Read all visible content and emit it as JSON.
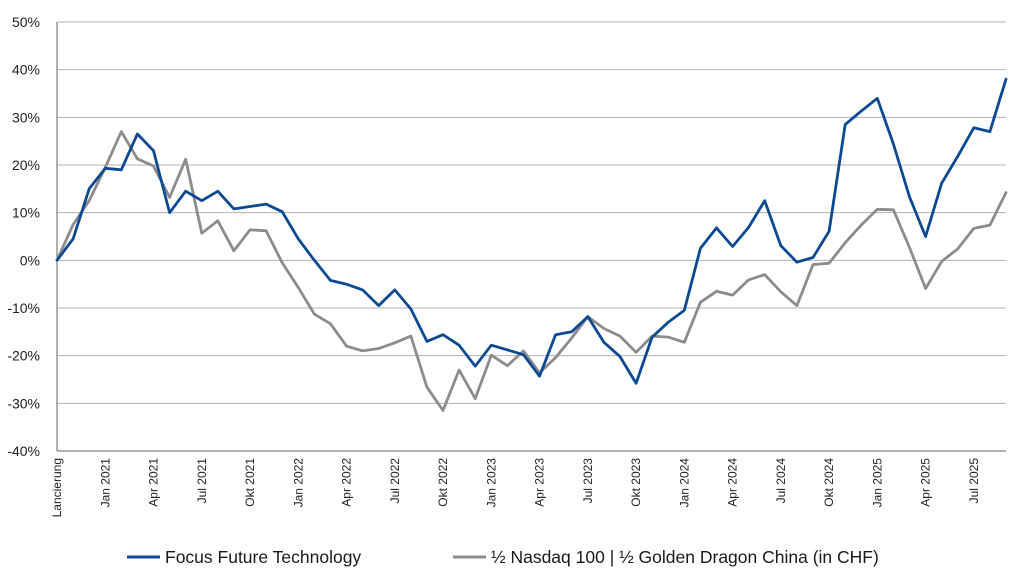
{
  "chart_data": {
    "type": "line",
    "ylim": [
      -40,
      50
    ],
    "y_ticks": [
      "50%",
      "40%",
      "30%",
      "20%",
      "10%",
      "0%",
      "-10%",
      "-20%",
      "-30%",
      "-40%"
    ],
    "y_tick_values": [
      50,
      40,
      30,
      20,
      10,
      0,
      -10,
      -20,
      -30,
      -40
    ],
    "x_labels": [
      "Lancierung",
      "Jan 2021",
      "Apr 2021",
      "Jul 2021",
      "Okt 2021",
      "Jan 2022",
      "Apr 2022",
      "Jul 2022",
      "Okt 2022",
      "Jan 2023",
      "Apr 2023",
      "Jul 2023",
      "Okt 2023",
      "Jan 2024",
      "Apr 2024",
      "Jul 2024",
      "Okt 2024",
      "Jan 2025",
      "Apr 2025",
      "Jul 2025"
    ],
    "grid": "horizontal",
    "legend_position": "bottom",
    "series": [
      {
        "name": "Focus Future Technology",
        "color": "#0b4a93",
        "values": [
          0,
          4.5,
          15,
          19.3,
          19,
          26.5,
          23,
          10,
          14.5,
          12.5,
          14.5,
          10.8,
          11.3,
          11.8,
          10.2,
          4.5,
          0,
          -4.2,
          -5,
          -6.2,
          -9.5,
          -6.2,
          -10.2,
          -17,
          -15.6,
          -17.8,
          -22.2,
          -17.8,
          -18.8,
          -19.8,
          -24.3,
          -15.6,
          -15,
          -11.8,
          -17.2,
          -20.2,
          -25.8,
          -16.1,
          -13,
          -10.5,
          2.5,
          6.8,
          2.9,
          6.9,
          12.5,
          3.1,
          -0.4,
          0.6,
          6.1,
          28.5,
          31.3,
          34,
          24.4,
          13.3,
          5,
          16.2,
          21.8,
          27.8,
          27,
          38
        ]
      },
      {
        "name": "½ Nasdaq 100 | ½ Golden Dragon China (in CHF)",
        "color": "#8c8c8c",
        "values": [
          0,
          7.5,
          12.5,
          19.5,
          27,
          21.3,
          19.8,
          13.2,
          21.2,
          5.7,
          8.3,
          2,
          6.4,
          6.2,
          -0.5,
          -5.7,
          -11.3,
          -13.3,
          -18,
          -19,
          -18.5,
          -17.3,
          -15.9,
          -26.6,
          -31.5,
          -23,
          -29,
          -19.9,
          -22.1,
          -19,
          -23.6,
          -20.4,
          -16.3,
          -11.8,
          -14.3,
          -15.9,
          -19.3,
          -15.9,
          -16.1,
          -17.2,
          -8.8,
          -6.5,
          -7.3,
          -4.1,
          -3,
          -6.6,
          -9.5,
          -0.9,
          -0.6,
          3.7,
          7.4,
          10.7,
          10.6,
          2.7,
          -5.9,
          -0.2,
          2.4,
          6.7,
          7.4,
          14.2
        ]
      }
    ]
  }
}
